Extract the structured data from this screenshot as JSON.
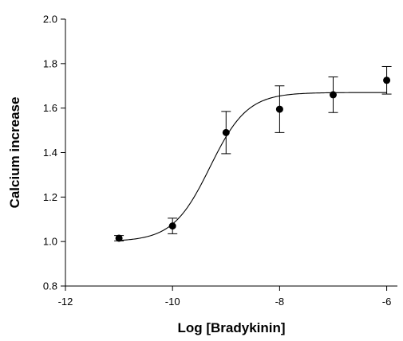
{
  "chart_data": {
    "type": "scatter",
    "title": "",
    "xlabel": "Log [Bradykinin]",
    "ylabel": "Calcium increase",
    "xlim": [
      -12,
      -5.8
    ],
    "ylim": [
      0.8,
      2.0
    ],
    "x_ticks": [
      -12,
      -10,
      -8,
      -6
    ],
    "x_tick_labels": [
      "-12",
      "-10",
      "-8",
      "-6"
    ],
    "y_ticks": [
      0.8,
      1.0,
      1.2,
      1.4,
      1.6,
      1.8,
      2.0
    ],
    "y_tick_labels": [
      "0.8",
      "1.0",
      "1.2",
      "1.4",
      "1.6",
      "1.8",
      "2.0"
    ],
    "grid": false,
    "legend": "none",
    "series": [
      {
        "x": [
          -11,
          -10,
          -9,
          -8,
          -7,
          -6
        ],
        "y": [
          1.015,
          1.07,
          1.49,
          1.595,
          1.66,
          1.725
        ],
        "error": [
          0.012,
          0.035,
          0.095,
          0.105,
          0.08,
          0.062
        ],
        "marker": "filled-circle",
        "color": "#000000"
      }
    ],
    "fit_curve": {
      "type": "sigmoid",
      "bottom": 1.0,
      "top": 1.67,
      "log_ec50": -9.3,
      "hill_slope": 1.25,
      "x_range": [
        -11,
        -6
      ],
      "color": "#000000"
    }
  }
}
